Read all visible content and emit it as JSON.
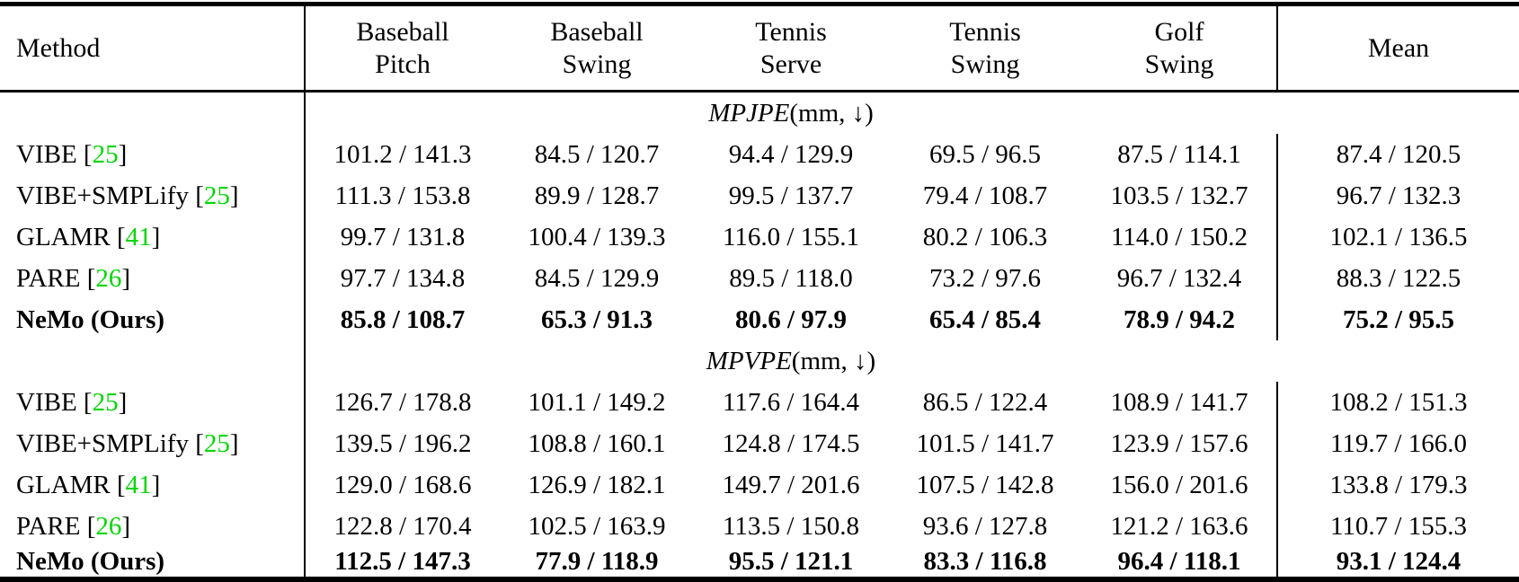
{
  "colors": {
    "citation_green": "#00d600",
    "text_black": "#000000"
  },
  "table": {
    "columns": [
      {
        "label": "Method"
      },
      {
        "line1": "Baseball",
        "line2": "Pitch"
      },
      {
        "line1": "Baseball",
        "line2": "Swing"
      },
      {
        "line1": "Tennis",
        "line2": "Serve"
      },
      {
        "line1": "Tennis",
        "line2": "Swing"
      },
      {
        "line1": "Golf",
        "line2": "Swing"
      },
      {
        "label": "Mean"
      }
    ],
    "sections": [
      {
        "metric": "MPJPE",
        "unit_suffix": " (mm, ↓)",
        "rows": [
          {
            "method": "VIBE",
            "ref": "25",
            "bold": false,
            "values": [
              "101.2 / 141.3",
              "84.5 / 120.7",
              "94.4 / 129.9",
              "69.5 / 96.5",
              "87.5 / 114.1",
              "87.4 / 120.5"
            ]
          },
          {
            "method": "VIBE+SMPLify",
            "ref": "25",
            "bold": false,
            "values": [
              "111.3 / 153.8",
              "89.9 / 128.7",
              "99.5 / 137.7",
              "79.4 / 108.7",
              "103.5 / 132.7",
              "96.7 / 132.3"
            ]
          },
          {
            "method": "GLAMR",
            "ref": "41",
            "bold": false,
            "values": [
              "99.7 / 131.8",
              "100.4 / 139.3",
              "116.0 / 155.1",
              "80.2 / 106.3",
              "114.0 / 150.2",
              "102.1 / 136.5"
            ]
          },
          {
            "method": "PARE",
            "ref": "26",
            "bold": false,
            "values": [
              "97.7 / 134.8",
              "84.5 / 129.9",
              "89.5 / 118.0",
              "73.2 / 97.6",
              "96.7 / 132.4",
              "88.3 / 122.5"
            ]
          },
          {
            "method": "NeMo (Ours)",
            "ref": null,
            "bold": true,
            "values": [
              "85.8 / 108.7",
              "65.3 / 91.3",
              "80.6 / 97.9",
              "65.4 / 85.4",
              "78.9 / 94.2",
              "75.2 / 95.5"
            ]
          }
        ]
      },
      {
        "metric": "MPVPE",
        "unit_suffix": " (mm, ↓)",
        "rows": [
          {
            "method": "VIBE",
            "ref": "25",
            "bold": false,
            "values": [
              "126.7 / 178.8",
              "101.1 / 149.2",
              "117.6 / 164.4",
              "86.5 / 122.4",
              "108.9 / 141.7",
              "108.2 / 151.3"
            ]
          },
          {
            "method": "VIBE+SMPLify",
            "ref": "25",
            "bold": false,
            "values": [
              "139.5 / 196.2",
              "108.8 / 160.1",
              "124.8 / 174.5",
              "101.5 / 141.7",
              "123.9 / 157.6",
              "119.7 / 166.0"
            ]
          },
          {
            "method": "GLAMR",
            "ref": "41",
            "bold": false,
            "values": [
              "129.0 / 168.6",
              "126.9 / 182.1",
              "149.7 / 201.6",
              "107.5 / 142.8",
              "156.0 / 201.6",
              "133.8 / 179.3"
            ]
          },
          {
            "method": "PARE",
            "ref": "26",
            "bold": false,
            "values": [
              "122.8 / 170.4",
              "102.5 / 163.9",
              "113.5 / 150.8",
              "93.6 / 127.8",
              "121.2 / 163.6",
              "110.7 / 155.3"
            ]
          },
          {
            "method": "NeMo (Ours)",
            "ref": null,
            "bold": true,
            "values": [
              "112.5 / 147.3",
              "77.9 / 118.9",
              "95.5 / 121.1",
              "83.3 / 116.8",
              "96.4 / 118.1",
              "93.1 / 124.4"
            ]
          }
        ]
      }
    ]
  }
}
